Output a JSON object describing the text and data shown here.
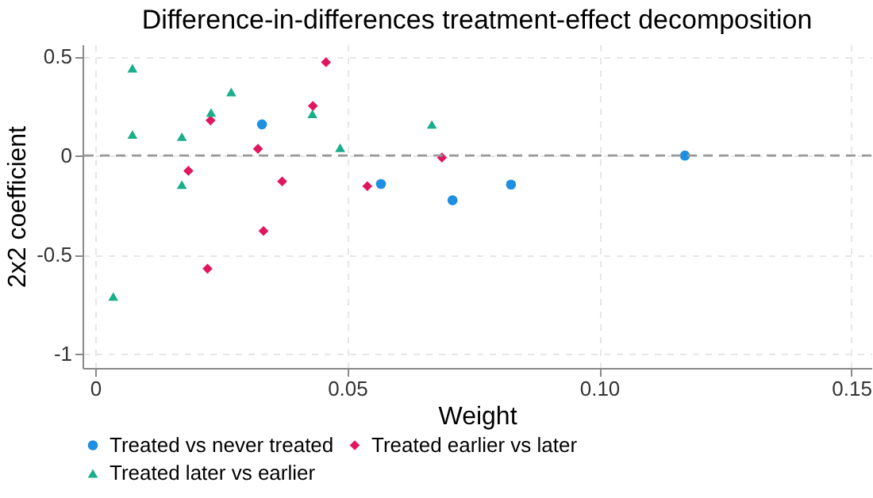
{
  "chart_data": {
    "type": "scatter",
    "title": "Difference-in-differences treatment-effect decomposition",
    "xlabel": "Weight",
    "ylabel": "2x2 coefficient",
    "xlim": [
      -0.0025,
      0.154
    ],
    "ylim": [
      -1.07,
      0.56
    ],
    "xticks": [
      0,
      0.05,
      {
        "value": 0.1,
        "label": "0.10"
      },
      0.15
    ],
    "yticks": [
      -1,
      -0.5,
      0,
      0.5
    ],
    "grid": true,
    "legend": "bottom",
    "ref_lines": [
      {
        "axis": "y",
        "value": 0,
        "color": "#999999",
        "line_style": "dashed"
      }
    ],
    "series": [
      {
        "name": "Treated vs never treated",
        "color": "#1f8fe0",
        "marker": "circle",
        "x": [
          0.0331,
          0.0567,
          0.0709,
          0.0825,
          0.117
        ],
        "values": [
          0.157,
          -0.143,
          -0.225,
          -0.146,
          0
        ]
      },
      {
        "name": "Treated earlier vs later",
        "color": "#e0175f",
        "marker": "diamond",
        "x": [
          0.0458,
          0.0432,
          0.0229,
          0.0323,
          0.0185,
          0.0371,
          0.054,
          0.0688,
          0.0334,
          0.0223
        ],
        "values": [
          0.47,
          0.25,
          0.177,
          0.034,
          -0.077,
          -0.13,
          -0.154,
          -0.01,
          -0.38,
          -0.57
        ]
      },
      {
        "name": "Treated later vs earlier",
        "color": "#1aae8a",
        "marker": "triangle",
        "x": [
          0.0074,
          0.0074,
          0.027,
          0.023,
          0.0172,
          0.0172,
          0.0431,
          0.0486,
          0.0668,
          0.0036
        ],
        "values": [
          0.44,
          0.106,
          0.32,
          0.217,
          0.095,
          -0.146,
          0.21,
          0.04,
          0.157,
          -0.71
        ]
      }
    ]
  }
}
